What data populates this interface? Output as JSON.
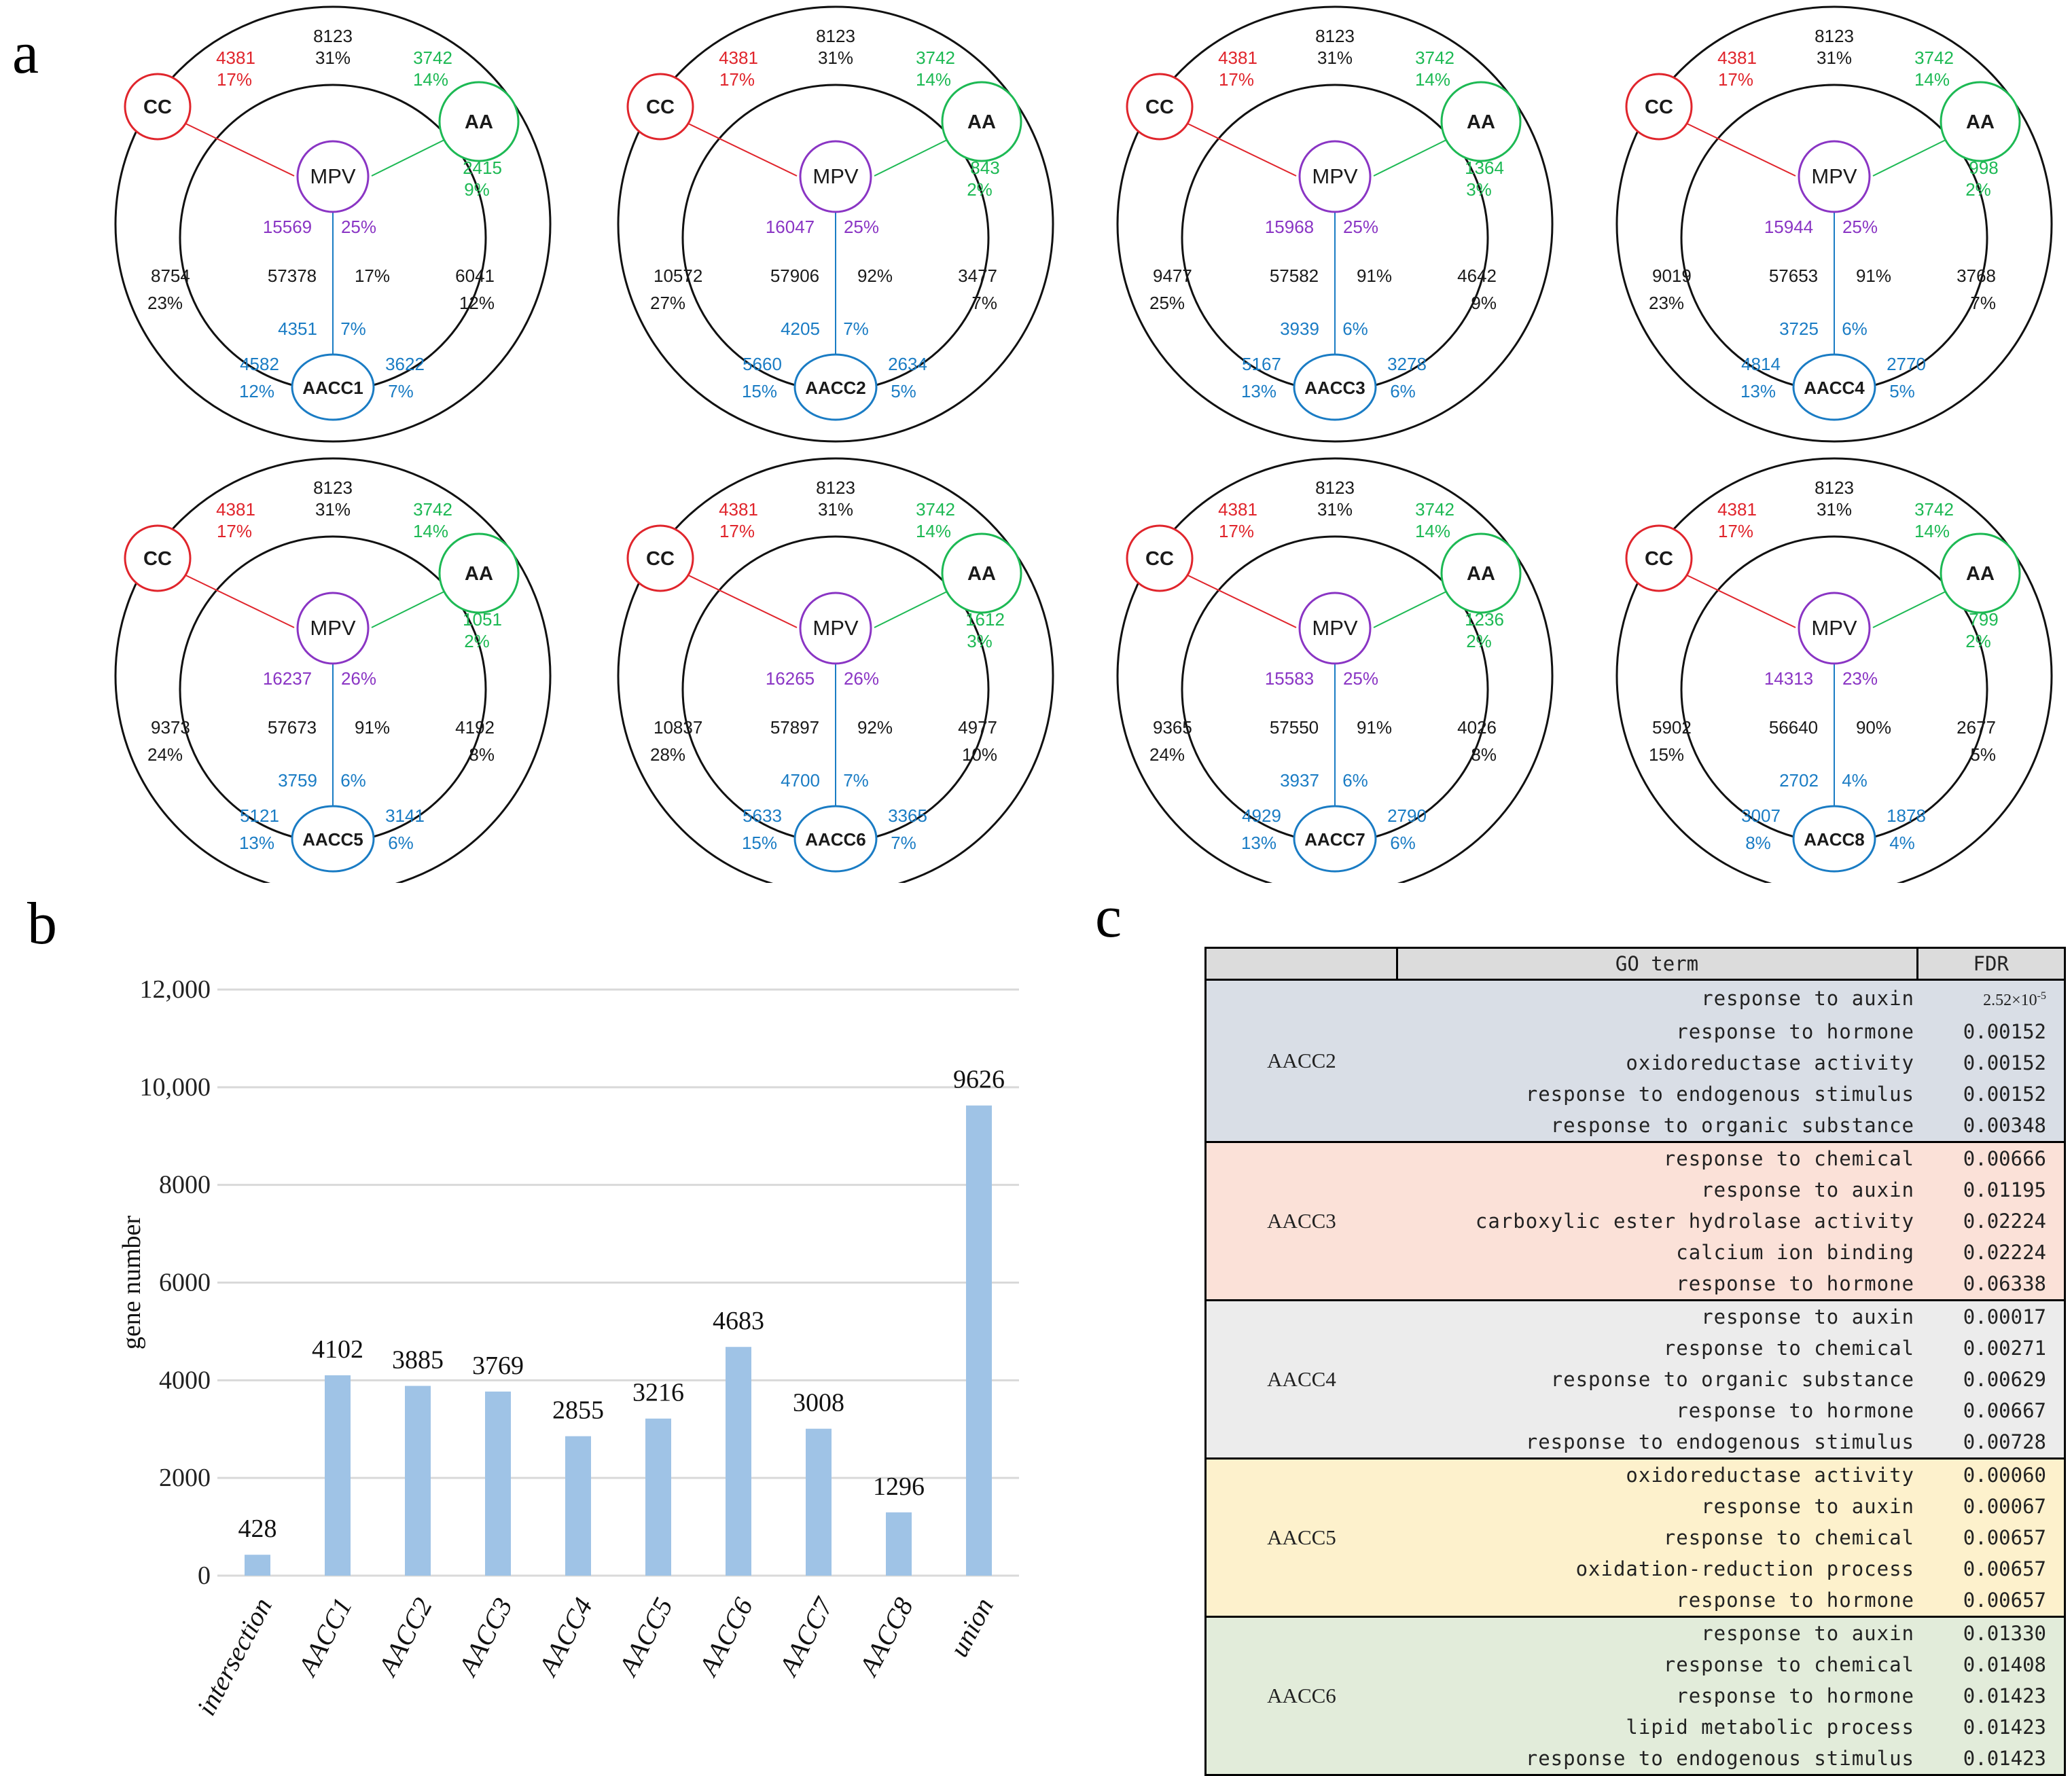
{
  "panels": {
    "a": "a",
    "b": "b",
    "c": "c"
  },
  "colors": {
    "cc": "#e0252c",
    "aa": "#1db954",
    "mpv": "#8a35c4",
    "aacc": "#1a7cc4",
    "black": "#1a1a1a",
    "bar": "#9fc3e6"
  },
  "venn_labels": {
    "cc": "CC",
    "aa": "AA",
    "mpv": "MPV"
  },
  "diagrams": [
    {
      "name": "AACC1",
      "top": [
        "8123",
        "31%"
      ],
      "cc": [
        "4381",
        "17%"
      ],
      "aa": [
        "3742",
        "14%"
      ],
      "aa_in": [
        "2415",
        "9%"
      ],
      "left": [
        "8754",
        "23%"
      ],
      "right": [
        "6041",
        "12%"
      ],
      "mpv": [
        "15569",
        "25%"
      ],
      "center": [
        "57378",
        "17%"
      ],
      "aacc_in": [
        "4351",
        "7%"
      ],
      "aacc_left": [
        "4582",
        "12%"
      ],
      "aacc_right": [
        "3622",
        "7%"
      ]
    },
    {
      "name": "AACC2",
      "top": [
        "8123",
        "31%"
      ],
      "cc": [
        "4381",
        "17%"
      ],
      "aa": [
        "3742",
        "14%"
      ],
      "aa_in": [
        "843",
        "2%"
      ],
      "left": [
        "10572",
        "27%"
      ],
      "right": [
        "3477",
        "7%"
      ],
      "mpv": [
        "16047",
        "25%"
      ],
      "center": [
        "57906",
        "92%"
      ],
      "aacc_in": [
        "4205",
        "7%"
      ],
      "aacc_left": [
        "5660",
        "15%"
      ],
      "aacc_right": [
        "2634",
        "5%"
      ]
    },
    {
      "name": "AACC3",
      "top": [
        "8123",
        "31%"
      ],
      "cc": [
        "4381",
        "17%"
      ],
      "aa": [
        "3742",
        "14%"
      ],
      "aa_in": [
        "1364",
        "3%"
      ],
      "left": [
        "9477",
        "25%"
      ],
      "right": [
        "4642",
        "9%"
      ],
      "mpv": [
        "15968",
        "25%"
      ],
      "center": [
        "57582",
        "91%"
      ],
      "aacc_in": [
        "3939",
        "6%"
      ],
      "aacc_left": [
        "5167",
        "13%"
      ],
      "aacc_right": [
        "3278",
        "6%"
      ]
    },
    {
      "name": "AACC4",
      "top": [
        "8123",
        "31%"
      ],
      "cc": [
        "4381",
        "17%"
      ],
      "aa": [
        "3742",
        "14%"
      ],
      "aa_in": [
        "998",
        "2%"
      ],
      "left": [
        "9019",
        "23%"
      ],
      "right": [
        "3768",
        "7%"
      ],
      "mpv": [
        "15944",
        "25%"
      ],
      "center": [
        "57653",
        "91%"
      ],
      "aacc_in": [
        "3725",
        "6%"
      ],
      "aacc_left": [
        "4814",
        "13%"
      ],
      "aacc_right": [
        "2770",
        "5%"
      ]
    },
    {
      "name": "AACC5",
      "top": [
        "8123",
        "31%"
      ],
      "cc": [
        "4381",
        "17%"
      ],
      "aa": [
        "3742",
        "14%"
      ],
      "aa_in": [
        "1051",
        "2%"
      ],
      "left": [
        "9373",
        "24%"
      ],
      "right": [
        "4192",
        "8%"
      ],
      "mpv": [
        "16237",
        "26%"
      ],
      "center": [
        "57673",
        "91%"
      ],
      "aacc_in": [
        "3759",
        "6%"
      ],
      "aacc_left": [
        "5121",
        "13%"
      ],
      "aacc_right": [
        "3141",
        "6%"
      ]
    },
    {
      "name": "AACC6",
      "top": [
        "8123",
        "31%"
      ],
      "cc": [
        "4381",
        "17%"
      ],
      "aa": [
        "3742",
        "14%"
      ],
      "aa_in": [
        "1612",
        "3%"
      ],
      "left": [
        "10837",
        "28%"
      ],
      "right": [
        "4977",
        "10%"
      ],
      "mpv": [
        "16265",
        "26%"
      ],
      "center": [
        "57897",
        "92%"
      ],
      "aacc_in": [
        "4700",
        "7%"
      ],
      "aacc_left": [
        "5633",
        "15%"
      ],
      "aacc_right": [
        "3365",
        "7%"
      ]
    },
    {
      "name": "AACC7",
      "top": [
        "8123",
        "31%"
      ],
      "cc": [
        "4381",
        "17%"
      ],
      "aa": [
        "3742",
        "14%"
      ],
      "aa_in": [
        "1236",
        "2%"
      ],
      "left": [
        "9365",
        "24%"
      ],
      "right": [
        "4026",
        "8%"
      ],
      "mpv": [
        "15583",
        "25%"
      ],
      "center": [
        "57550",
        "91%"
      ],
      "aacc_in": [
        "3937",
        "6%"
      ],
      "aacc_left": [
        "4929",
        "13%"
      ],
      "aacc_right": [
        "2790",
        "6%"
      ]
    },
    {
      "name": "AACC8",
      "top": [
        "8123",
        "31%"
      ],
      "cc": [
        "4381",
        "17%"
      ],
      "aa": [
        "3742",
        "14%"
      ],
      "aa_in": [
        "799",
        "2%"
      ],
      "left": [
        "5902",
        "15%"
      ],
      "right": [
        "2677",
        "5%"
      ],
      "mpv": [
        "14313",
        "23%"
      ],
      "center": [
        "56640",
        "90%"
      ],
      "aacc_in": [
        "2702",
        "4%"
      ],
      "aacc_left": [
        "3007",
        "8%"
      ],
      "aacc_right": [
        "1878",
        "4%"
      ]
    }
  ],
  "chart_data": {
    "type": "bar",
    "title": "",
    "xlabel": "",
    "ylabel": "gene number",
    "categories": [
      "intersection",
      "AACC1",
      "AACC2",
      "AACC3",
      "AACC4",
      "AACC5",
      "AACC6",
      "AACC7",
      "AACC8",
      "union"
    ],
    "values": [
      428,
      4102,
      3885,
      3769,
      2855,
      3216,
      4683,
      3008,
      1296,
      9626
    ],
    "data_labels": [
      "428",
      "4102",
      "3885",
      "3769",
      "2855",
      "3216",
      "4683",
      "3008",
      "1296",
      "9626"
    ],
    "ylim": [
      0,
      12000
    ],
    "yticks": [
      0,
      2000,
      4000,
      6000,
      8000,
      10000,
      12000
    ],
    "ytick_labels": [
      "0",
      "2000",
      "4000",
      "6000",
      "8000",
      "10,000",
      "12,000"
    ],
    "grid": true
  },
  "go_table": {
    "headers": [
      "GO term",
      "FDR"
    ],
    "groups": [
      {
        "name": "AACC2",
        "color": "#d9dee6",
        "rows": [
          {
            "term": "response to auxin",
            "fdr": "2.52×10",
            "exp": "-5"
          },
          {
            "term": "response to hormone",
            "fdr": "0.00152"
          },
          {
            "term": "oxidoreductase activity",
            "fdr": "0.00152"
          },
          {
            "term": "response to endogenous stimulus",
            "fdr": "0.00152"
          },
          {
            "term": "response to organic substance",
            "fdr": "0.00348"
          }
        ]
      },
      {
        "name": "AACC3",
        "color": "#fbe1d8",
        "rows": [
          {
            "term": "response to chemical",
            "fdr": "0.00666"
          },
          {
            "term": "response to auxin",
            "fdr": "0.01195"
          },
          {
            "term": "carboxylic ester hydrolase activity",
            "fdr": "0.02224"
          },
          {
            "term": "calcium ion binding",
            "fdr": "0.02224"
          },
          {
            "term": "response to hormone",
            "fdr": "0.06338"
          }
        ]
      },
      {
        "name": "AACC4",
        "color": "#ececec",
        "rows": [
          {
            "term": "response to auxin",
            "fdr": "0.00017"
          },
          {
            "term": "response to chemical",
            "fdr": "0.00271"
          },
          {
            "term": "response to organic substance",
            "fdr": "0.00629"
          },
          {
            "term": "response to hormone",
            "fdr": "0.00667"
          },
          {
            "term": "response to endogenous stimulus",
            "fdr": "0.00728"
          }
        ]
      },
      {
        "name": "AACC5",
        "color": "#fdf1cc",
        "rows": [
          {
            "term": "oxidoreductase activity",
            "fdr": "0.00060"
          },
          {
            "term": "response to auxin",
            "fdr": "0.00067"
          },
          {
            "term": "response to chemical",
            "fdr": "0.00657"
          },
          {
            "term": "oxidation-reduction process",
            "fdr": "0.00657"
          },
          {
            "term": "response to hormone",
            "fdr": "0.00657"
          }
        ]
      },
      {
        "name": "AACC6",
        "color": "#e2ecda",
        "rows": [
          {
            "term": "response to auxin",
            "fdr": "0.01330"
          },
          {
            "term": "response to chemical",
            "fdr": "0.01408"
          },
          {
            "term": "response to hormone",
            "fdr": "0.01423"
          },
          {
            "term": "lipid metabolic process",
            "fdr": "0.01423"
          },
          {
            "term": "response to endogenous stimulus",
            "fdr": "0.01423"
          }
        ]
      }
    ]
  }
}
